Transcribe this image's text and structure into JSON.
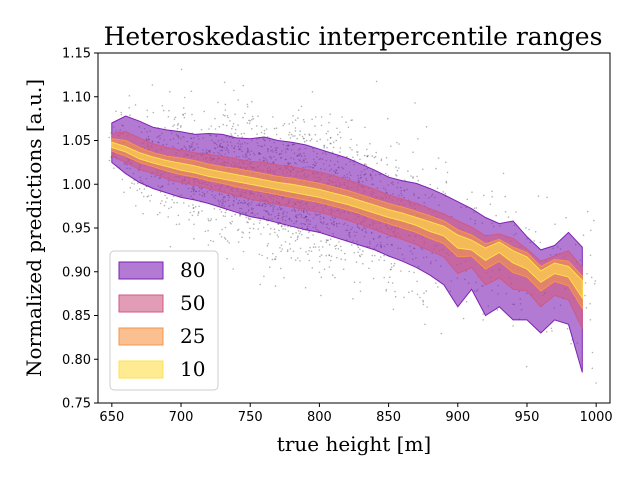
{
  "chart_data": {
    "type": "area",
    "title": "Heteroskedastic interpercentile ranges",
    "xlabel": "true height [m]",
    "ylabel": "Normalized predictions [a.u.]",
    "xlim": [
      640,
      1010
    ],
    "ylim": [
      0.75,
      1.15
    ],
    "xticks": [
      "650",
      "700",
      "750",
      "800",
      "850",
      "900",
      "950",
      "1000"
    ],
    "yticks": [
      "0.75",
      "0.80",
      "0.85",
      "0.90",
      "0.95",
      "1.00",
      "1.05",
      "1.10",
      "1.15"
    ],
    "grid": false,
    "legend_position": "lower-left",
    "x": [
      650,
      660,
      670,
      680,
      690,
      700,
      710,
      720,
      730,
      740,
      750,
      760,
      770,
      780,
      790,
      800,
      810,
      820,
      830,
      840,
      850,
      860,
      870,
      880,
      890,
      900,
      910,
      920,
      930,
      940,
      950,
      960,
      970,
      980,
      990
    ],
    "median": [
      1.045,
      1.04,
      1.032,
      1.027,
      1.023,
      1.02,
      1.017,
      1.013,
      1.01,
      1.007,
      1.004,
      1.001,
      0.998,
      0.996,
      0.993,
      0.99,
      0.986,
      0.982,
      0.977,
      0.972,
      0.967,
      0.963,
      0.958,
      0.952,
      0.947,
      0.935,
      0.93,
      0.92,
      0.93,
      0.918,
      0.91,
      0.895,
      0.905,
      0.9,
      0.88
    ],
    "series": [
      {
        "name": "80",
        "color": "#7e22b4",
        "lower": [
          1.025,
          1.012,
          1.002,
          0.995,
          0.99,
          0.985,
          0.982,
          0.978,
          0.973,
          0.968,
          0.963,
          0.96,
          0.956,
          0.952,
          0.948,
          0.945,
          0.94,
          0.935,
          0.93,
          0.925,
          0.918,
          0.912,
          0.905,
          0.896,
          0.885,
          0.86,
          0.88,
          0.85,
          0.86,
          0.845,
          0.845,
          0.83,
          0.845,
          0.84,
          0.785
        ],
        "upper": [
          1.07,
          1.078,
          1.072,
          1.065,
          1.062,
          1.06,
          1.057,
          1.058,
          1.057,
          1.053,
          1.052,
          1.054,
          1.05,
          1.048,
          1.045,
          1.04,
          1.035,
          1.03,
          1.023,
          1.016,
          1.008,
          1.004,
          1.001,
          0.995,
          0.988,
          0.98,
          0.972,
          0.962,
          0.955,
          0.958,
          0.94,
          0.925,
          0.93,
          0.945,
          0.928
        ]
      },
      {
        "name": "50",
        "color": "#d05a84",
        "lower": [
          1.032,
          1.025,
          1.017,
          1.012,
          1.006,
          1.002,
          0.999,
          0.995,
          0.991,
          0.987,
          0.983,
          0.98,
          0.977,
          0.974,
          0.971,
          0.968,
          0.964,
          0.959,
          0.954,
          0.948,
          0.942,
          0.937,
          0.931,
          0.924,
          0.917,
          0.898,
          0.905,
          0.885,
          0.893,
          0.88,
          0.878,
          0.86,
          0.873,
          0.868,
          0.835
        ],
        "upper": [
          1.058,
          1.06,
          1.053,
          1.046,
          1.042,
          1.039,
          1.036,
          1.034,
          1.032,
          1.029,
          1.026,
          1.025,
          1.022,
          1.02,
          1.017,
          1.014,
          1.01,
          1.005,
          1.0,
          0.994,
          0.988,
          0.983,
          0.978,
          0.972,
          0.966,
          0.958,
          0.951,
          0.941,
          0.943,
          0.938,
          0.926,
          0.912,
          0.918,
          0.924,
          0.905
        ]
      },
      {
        "name": "25",
        "color": "#f79648",
        "lower": [
          1.038,
          1.032,
          1.025,
          1.02,
          1.015,
          1.011,
          1.008,
          1.004,
          1.001,
          0.997,
          0.994,
          0.991,
          0.988,
          0.985,
          0.982,
          0.979,
          0.975,
          0.971,
          0.966,
          0.96,
          0.955,
          0.95,
          0.945,
          0.938,
          0.932,
          0.917,
          0.918,
          0.903,
          0.912,
          0.899,
          0.894,
          0.878,
          0.889,
          0.884,
          0.858
        ],
        "upper": [
          1.052,
          1.05,
          1.042,
          1.036,
          1.032,
          1.03,
          1.027,
          1.023,
          1.02,
          1.018,
          1.015,
          1.012,
          1.009,
          1.007,
          1.004,
          1.001,
          0.997,
          0.993,
          0.988,
          0.983,
          0.978,
          0.974,
          0.969,
          0.964,
          0.958,
          0.948,
          0.942,
          0.932,
          0.937,
          0.928,
          0.922,
          0.906,
          0.914,
          0.912,
          0.895
        ]
      },
      {
        "name": "10",
        "color": "#ffe04a",
        "lower": [
          1.042,
          1.037,
          1.029,
          1.024,
          1.02,
          1.016,
          1.013,
          1.009,
          1.006,
          1.003,
          1.0,
          0.997,
          0.994,
          0.991,
          0.988,
          0.985,
          0.981,
          0.977,
          0.972,
          0.967,
          0.962,
          0.958,
          0.953,
          0.946,
          0.941,
          0.927,
          0.925,
          0.913,
          0.922,
          0.91,
          0.903,
          0.888,
          0.898,
          0.894,
          0.87
        ],
        "upper": [
          1.048,
          1.043,
          1.036,
          1.031,
          1.027,
          1.024,
          1.021,
          1.017,
          1.014,
          1.011,
          1.008,
          1.005,
          1.002,
          1.0,
          0.997,
          0.994,
          0.99,
          0.986,
          0.981,
          0.976,
          0.971,
          0.967,
          0.962,
          0.957,
          0.952,
          0.942,
          0.936,
          0.927,
          0.934,
          0.924,
          0.917,
          0.901,
          0.91,
          0.906,
          0.89
        ]
      }
    ],
    "scatter": {
      "color": "#000000",
      "x_range": [
        650,
        1000
      ]
    }
  }
}
